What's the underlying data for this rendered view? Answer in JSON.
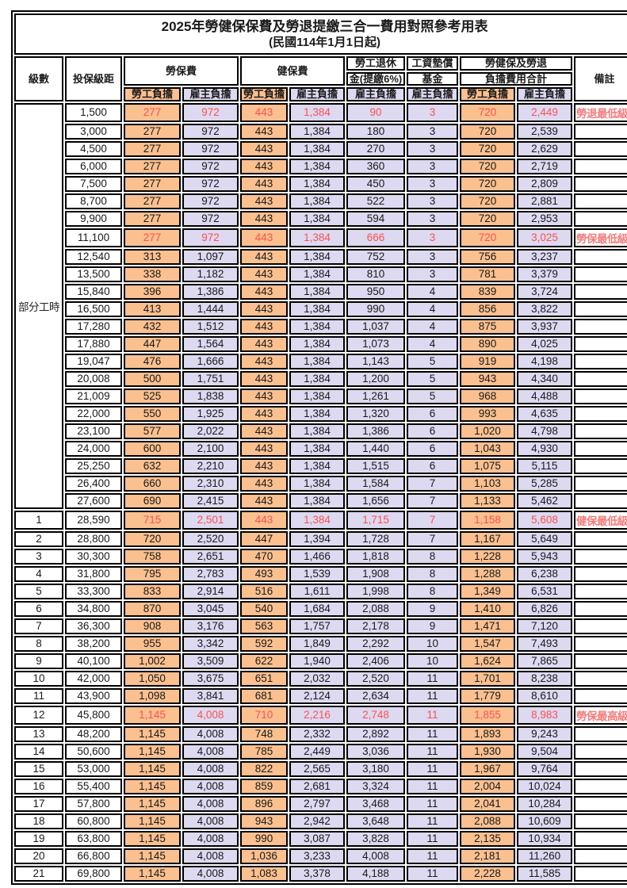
{
  "title": "2025年勞健保保費及勞退提繳三合一費用對照參考用表",
  "subtitle": "(民國114年1月1日起)",
  "header": {
    "level": "級數",
    "bracket": "投保級距",
    "labor": "勞保費",
    "health": "健保費",
    "pension_line1": "勞工退休",
    "pension_line2": "金(提繳6%)",
    "wage_fund_line1": "工資墊償",
    "wage_fund_line2": "基金",
    "total_line1": "勞健保及勞退",
    "total_line2": "負擔費用合計",
    "note": "備註",
    "employee_share": "勞工負擔",
    "employer_share": "雇主負擔"
  },
  "group_label": "部分工時",
  "colors": {
    "employee_bg": "#FAC090",
    "employer_bg": "#DCD9F0",
    "highlight_text": "#FF5050",
    "note_text": "#F47C7C",
    "border": "#000000"
  },
  "rows": [
    {
      "level": "",
      "bracket": "1,500",
      "labor_emp": "277",
      "labor_er": "972",
      "health_emp": "443",
      "health_er": "1,384",
      "pension": "90",
      "fund": "3",
      "total_emp": "720",
      "total_er": "2,449",
      "note": "勞退最低級距",
      "hl": true,
      "big": false
    },
    {
      "level": "",
      "bracket": "3,000",
      "labor_emp": "277",
      "labor_er": "972",
      "health_emp": "443",
      "health_er": "1,384",
      "pension": "180",
      "fund": "3",
      "total_emp": "720",
      "total_er": "2,539",
      "note": "",
      "hl": false,
      "big": false
    },
    {
      "level": "",
      "bracket": "4,500",
      "labor_emp": "277",
      "labor_er": "972",
      "health_emp": "443",
      "health_er": "1,384",
      "pension": "270",
      "fund": "3",
      "total_emp": "720",
      "total_er": "2,629",
      "note": "",
      "hl": false,
      "big": false
    },
    {
      "level": "",
      "bracket": "6,000",
      "labor_emp": "277",
      "labor_er": "972",
      "health_emp": "443",
      "health_er": "1,384",
      "pension": "360",
      "fund": "3",
      "total_emp": "720",
      "total_er": "2,719",
      "note": "",
      "hl": false,
      "big": false
    },
    {
      "level": "",
      "bracket": "7,500",
      "labor_emp": "277",
      "labor_er": "972",
      "health_emp": "443",
      "health_er": "1,384",
      "pension": "450",
      "fund": "3",
      "total_emp": "720",
      "total_er": "2,809",
      "note": "",
      "hl": false,
      "big": false
    },
    {
      "level": "",
      "bracket": "8,700",
      "labor_emp": "277",
      "labor_er": "972",
      "health_emp": "443",
      "health_er": "1,384",
      "pension": "522",
      "fund": "3",
      "total_emp": "720",
      "total_er": "2,881",
      "note": "",
      "hl": false,
      "big": false
    },
    {
      "level": "",
      "bracket": "9,900",
      "labor_emp": "277",
      "labor_er": "972",
      "health_emp": "443",
      "health_er": "1,384",
      "pension": "594",
      "fund": "3",
      "total_emp": "720",
      "total_er": "2,953",
      "note": "",
      "hl": false,
      "big": false
    },
    {
      "level": "",
      "bracket": "11,100",
      "labor_emp": "277",
      "labor_er": "972",
      "health_emp": "443",
      "health_er": "1,384",
      "pension": "666",
      "fund": "3",
      "total_emp": "720",
      "total_er": "3,025",
      "note": "勞保最低級距",
      "hl": true,
      "big": false
    },
    {
      "level": "",
      "bracket": "12,540",
      "labor_emp": "313",
      "labor_er": "1,097",
      "health_emp": "443",
      "health_er": "1,384",
      "pension": "752",
      "fund": "3",
      "total_emp": "756",
      "total_er": "3,237",
      "note": "",
      "hl": false,
      "big": false
    },
    {
      "level": "",
      "bracket": "13,500",
      "labor_emp": "338",
      "labor_er": "1,182",
      "health_emp": "443",
      "health_er": "1,384",
      "pension": "810",
      "fund": "3",
      "total_emp": "781",
      "total_er": "3,379",
      "note": "",
      "hl": false,
      "big": false
    },
    {
      "level": "",
      "bracket": "15,840",
      "labor_emp": "396",
      "labor_er": "1,386",
      "health_emp": "443",
      "health_er": "1,384",
      "pension": "950",
      "fund": "4",
      "total_emp": "839",
      "total_er": "3,724",
      "note": "",
      "hl": false,
      "big": false
    },
    {
      "level": "",
      "bracket": "16,500",
      "labor_emp": "413",
      "labor_er": "1,444",
      "health_emp": "443",
      "health_er": "1,384",
      "pension": "990",
      "fund": "4",
      "total_emp": "856",
      "total_er": "3,822",
      "note": "",
      "hl": false,
      "big": false
    },
    {
      "level": "",
      "bracket": "17,280",
      "labor_emp": "432",
      "labor_er": "1,512",
      "health_emp": "443",
      "health_er": "1,384",
      "pension": "1,037",
      "fund": "4",
      "total_emp": "875",
      "total_er": "3,937",
      "note": "",
      "hl": false,
      "big": false
    },
    {
      "level": "",
      "bracket": "17,880",
      "labor_emp": "447",
      "labor_er": "1,564",
      "health_emp": "443",
      "health_er": "1,384",
      "pension": "1,073",
      "fund": "4",
      "total_emp": "890",
      "total_er": "4,025",
      "note": "",
      "hl": false,
      "big": false
    },
    {
      "level": "",
      "bracket": "19,047",
      "labor_emp": "476",
      "labor_er": "1,666",
      "health_emp": "443",
      "health_er": "1,384",
      "pension": "1,143",
      "fund": "5",
      "total_emp": "919",
      "total_er": "4,198",
      "note": "",
      "hl": false,
      "big": false
    },
    {
      "level": "",
      "bracket": "20,008",
      "labor_emp": "500",
      "labor_er": "1,751",
      "health_emp": "443",
      "health_er": "1,384",
      "pension": "1,200",
      "fund": "5",
      "total_emp": "943",
      "total_er": "4,340",
      "note": "",
      "hl": false,
      "big": false
    },
    {
      "level": "",
      "bracket": "21,009",
      "labor_emp": "525",
      "labor_er": "1,838",
      "health_emp": "443",
      "health_er": "1,384",
      "pension": "1,261",
      "fund": "5",
      "total_emp": "968",
      "total_er": "4,488",
      "note": "",
      "hl": false,
      "big": false
    },
    {
      "level": "",
      "bracket": "22,000",
      "labor_emp": "550",
      "labor_er": "1,925",
      "health_emp": "443",
      "health_er": "1,384",
      "pension": "1,320",
      "fund": "6",
      "total_emp": "993",
      "total_er": "4,635",
      "note": "",
      "hl": false,
      "big": false
    },
    {
      "level": "",
      "bracket": "23,100",
      "labor_emp": "577",
      "labor_er": "2,022",
      "health_emp": "443",
      "health_er": "1,384",
      "pension": "1,386",
      "fund": "6",
      "total_emp": "1,020",
      "total_er": "4,798",
      "note": "",
      "hl": false,
      "big": false
    },
    {
      "level": "",
      "bracket": "24,000",
      "labor_emp": "600",
      "labor_er": "2,100",
      "health_emp": "443",
      "health_er": "1,384",
      "pension": "1,440",
      "fund": "6",
      "total_emp": "1,043",
      "total_er": "4,930",
      "note": "",
      "hl": false,
      "big": false
    },
    {
      "level": "",
      "bracket": "25,250",
      "labor_emp": "632",
      "labor_er": "2,210",
      "health_emp": "443",
      "health_er": "1,384",
      "pension": "1,515",
      "fund": "6",
      "total_emp": "1,075",
      "total_er": "5,115",
      "note": "",
      "hl": false,
      "big": false
    },
    {
      "level": "",
      "bracket": "26,400",
      "labor_emp": "660",
      "labor_er": "2,310",
      "health_emp": "443",
      "health_er": "1,384",
      "pension": "1,584",
      "fund": "7",
      "total_emp": "1,103",
      "total_er": "5,285",
      "note": "",
      "hl": false,
      "big": false
    },
    {
      "level": "",
      "bracket": "27,600",
      "labor_emp": "690",
      "labor_er": "2,415",
      "health_emp": "443",
      "health_er": "1,384",
      "pension": "1,656",
      "fund": "7",
      "total_emp": "1,133",
      "total_er": "5,462",
      "note": "",
      "hl": false,
      "big": false
    },
    {
      "level": "1",
      "bracket": "28,590",
      "labor_emp": "715",
      "labor_er": "2,501",
      "health_emp": "443",
      "health_er": "1,384",
      "pension": "1,715",
      "fund": "7",
      "total_emp": "1,158",
      "total_er": "5,608",
      "note": "健保最低級距",
      "hl": true,
      "big": true
    },
    {
      "level": "2",
      "bracket": "28,800",
      "labor_emp": "720",
      "labor_er": "2,520",
      "health_emp": "447",
      "health_er": "1,394",
      "pension": "1,728",
      "fund": "7",
      "total_emp": "1,167",
      "total_er": "5,649",
      "note": "",
      "hl": false,
      "big": false
    },
    {
      "level": "3",
      "bracket": "30,300",
      "labor_emp": "758",
      "labor_er": "2,651",
      "health_emp": "470",
      "health_er": "1,466",
      "pension": "1,818",
      "fund": "8",
      "total_emp": "1,228",
      "total_er": "5,943",
      "note": "",
      "hl": false,
      "big": false
    },
    {
      "level": "4",
      "bracket": "31,800",
      "labor_emp": "795",
      "labor_er": "2,783",
      "health_emp": "493",
      "health_er": "1,539",
      "pension": "1,908",
      "fund": "8",
      "total_emp": "1,288",
      "total_er": "6,238",
      "note": "",
      "hl": false,
      "big": false
    },
    {
      "level": "5",
      "bracket": "33,300",
      "labor_emp": "833",
      "labor_er": "2,914",
      "health_emp": "516",
      "health_er": "1,611",
      "pension": "1,998",
      "fund": "8",
      "total_emp": "1,349",
      "total_er": "6,531",
      "note": "",
      "hl": false,
      "big": false
    },
    {
      "level": "6",
      "bracket": "34,800",
      "labor_emp": "870",
      "labor_er": "3,045",
      "health_emp": "540",
      "health_er": "1,684",
      "pension": "2,088",
      "fund": "9",
      "total_emp": "1,410",
      "total_er": "6,826",
      "note": "",
      "hl": false,
      "big": false
    },
    {
      "level": "7",
      "bracket": "36,300",
      "labor_emp": "908",
      "labor_er": "3,176",
      "health_emp": "563",
      "health_er": "1,757",
      "pension": "2,178",
      "fund": "9",
      "total_emp": "1,471",
      "total_er": "7,120",
      "note": "",
      "hl": false,
      "big": false
    },
    {
      "level": "8",
      "bracket": "38,200",
      "labor_emp": "955",
      "labor_er": "3,342",
      "health_emp": "592",
      "health_er": "1,849",
      "pension": "2,292",
      "fund": "10",
      "total_emp": "1,547",
      "total_er": "7,493",
      "note": "",
      "hl": false,
      "big": false
    },
    {
      "level": "9",
      "bracket": "40,100",
      "labor_emp": "1,002",
      "labor_er": "3,509",
      "health_emp": "622",
      "health_er": "1,940",
      "pension": "2,406",
      "fund": "10",
      "total_emp": "1,624",
      "total_er": "7,865",
      "note": "",
      "hl": false,
      "big": false
    },
    {
      "level": "10",
      "bracket": "42,000",
      "labor_emp": "1,050",
      "labor_er": "3,675",
      "health_emp": "651",
      "health_er": "2,032",
      "pension": "2,520",
      "fund": "11",
      "total_emp": "1,701",
      "total_er": "8,238",
      "note": "",
      "hl": false,
      "big": false
    },
    {
      "level": "11",
      "bracket": "43,900",
      "labor_emp": "1,098",
      "labor_er": "3,841",
      "health_emp": "681",
      "health_er": "2,124",
      "pension": "2,634",
      "fund": "11",
      "total_emp": "1,779",
      "total_er": "8,610",
      "note": "",
      "hl": false,
      "big": false
    },
    {
      "level": "12",
      "bracket": "45,800",
      "labor_emp": "1,145",
      "labor_er": "4,008",
      "health_emp": "710",
      "health_er": "2,216",
      "pension": "2,748",
      "fund": "11",
      "total_emp": "1,855",
      "total_er": "8,983",
      "note": "勞保最高級距",
      "hl": true,
      "big": true
    },
    {
      "level": "13",
      "bracket": "48,200",
      "labor_emp": "1,145",
      "labor_er": "4,008",
      "health_emp": "748",
      "health_er": "2,332",
      "pension": "2,892",
      "fund": "11",
      "total_emp": "1,893",
      "total_er": "9,243",
      "note": "",
      "hl": false,
      "big": false
    },
    {
      "level": "14",
      "bracket": "50,600",
      "labor_emp": "1,145",
      "labor_er": "4,008",
      "health_emp": "785",
      "health_er": "2,449",
      "pension": "3,036",
      "fund": "11",
      "total_emp": "1,930",
      "total_er": "9,504",
      "note": "",
      "hl": false,
      "big": false
    },
    {
      "level": "15",
      "bracket": "53,000",
      "labor_emp": "1,145",
      "labor_er": "4,008",
      "health_emp": "822",
      "health_er": "2,565",
      "pension": "3,180",
      "fund": "11",
      "total_emp": "1,967",
      "total_er": "9,764",
      "note": "",
      "hl": false,
      "big": false
    },
    {
      "level": "16",
      "bracket": "55,400",
      "labor_emp": "1,145",
      "labor_er": "4,008",
      "health_emp": "859",
      "health_er": "2,681",
      "pension": "3,324",
      "fund": "11",
      "total_emp": "2,004",
      "total_er": "10,024",
      "note": "",
      "hl": false,
      "big": false
    },
    {
      "level": "17",
      "bracket": "57,800",
      "labor_emp": "1,145",
      "labor_er": "4,008",
      "health_emp": "896",
      "health_er": "2,797",
      "pension": "3,468",
      "fund": "11",
      "total_emp": "2,041",
      "total_er": "10,284",
      "note": "",
      "hl": false,
      "big": false
    },
    {
      "level": "18",
      "bracket": "60,800",
      "labor_emp": "1,145",
      "labor_er": "4,008",
      "health_emp": "943",
      "health_er": "2,942",
      "pension": "3,648",
      "fund": "11",
      "total_emp": "2,088",
      "total_er": "10,609",
      "note": "",
      "hl": false,
      "big": false
    },
    {
      "level": "19",
      "bracket": "63,800",
      "labor_emp": "1,145",
      "labor_er": "4,008",
      "health_emp": "990",
      "health_er": "3,087",
      "pension": "3,828",
      "fund": "11",
      "total_emp": "2,135",
      "total_er": "10,934",
      "note": "",
      "hl": false,
      "big": false
    },
    {
      "level": "20",
      "bracket": "66,800",
      "labor_emp": "1,145",
      "labor_er": "4,008",
      "health_emp": "1,036",
      "health_er": "3,233",
      "pension": "4,008",
      "fund": "11",
      "total_emp": "2,181",
      "total_er": "11,260",
      "note": "",
      "hl": false,
      "big": false
    },
    {
      "level": "21",
      "bracket": "69,800",
      "labor_emp": "1,145",
      "labor_er": "4,008",
      "health_emp": "1,083",
      "health_er": "3,378",
      "pension": "4,188",
      "fund": "11",
      "total_emp": "2,228",
      "total_er": "11,585",
      "note": "",
      "hl": false,
      "big": false
    }
  ]
}
